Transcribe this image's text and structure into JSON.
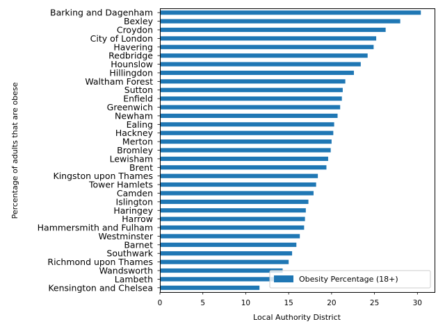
{
  "chart_data": {
    "type": "bar",
    "orientation": "horizontal",
    "xlabel": "Local Authority District",
    "ylabel": "Percentage of adults that are obese",
    "xlim": [
      0,
      32
    ],
    "xticks": [
      0,
      5,
      10,
      15,
      20,
      25,
      30
    ],
    "grid": false,
    "legend_placement": "bottom-right",
    "bar_color": "#1f77b4",
    "series": [
      {
        "name": "Obesity Percentage (18+)",
        "values": [
          30.4,
          28.0,
          26.3,
          25.2,
          24.9,
          24.2,
          23.4,
          22.6,
          21.6,
          21.3,
          21.2,
          21.0,
          20.7,
          20.3,
          20.2,
          20.0,
          19.9,
          19.6,
          19.4,
          18.4,
          18.2,
          17.9,
          17.3,
          17.0,
          16.9,
          16.8,
          16.3,
          15.9,
          15.4,
          15.0,
          14.3,
          14.0,
          11.6
        ]
      }
    ],
    "categories": [
      "Barking and Dagenham",
      "Bexley",
      "Croydon",
      "City of London",
      "Havering",
      "Redbridge",
      "Hounslow",
      "Hillingdon",
      "Waltham Forest",
      "Sutton",
      "Enfield",
      "Greenwich",
      "Newham",
      "Ealing",
      "Hackney",
      "Merton",
      "Bromley",
      "Lewisham",
      "Brent",
      "Kingston upon Thames",
      "Tower Hamlets",
      "Camden",
      "Islington",
      "Haringey",
      "Harrow",
      "Hammersmith and Fulham",
      "Westminster",
      "Barnet",
      "Southwark",
      "Richmond upon Thames",
      "Wandsworth",
      "Lambeth",
      "Kensington and Chelsea"
    ]
  }
}
